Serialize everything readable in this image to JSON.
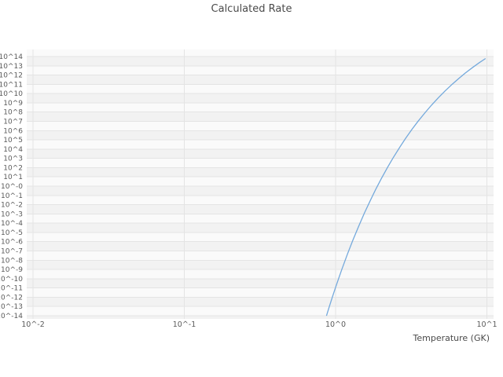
{
  "colors": {
    "title_text": "#4a4a4a",
    "tick_text": "#5a5a5a",
    "grid_line": "#e4e4e4",
    "band_dark": "#f2f2f2",
    "band_light": "#fafafa",
    "series_line": "#74a9dc"
  },
  "chart_data": {
    "type": "line",
    "title": "Calculated Rate",
    "xlabel": "Temperature (GK)",
    "ylabel": "",
    "x_scale": "log",
    "y_scale": "log",
    "xlim": [
      0.01,
      11
    ],
    "ylim_exp": [
      -14,
      14
    ],
    "grid": true,
    "legend": "none",
    "x_tick_labels": [
      "10^-2",
      "10^-1",
      "10^0",
      "10^1"
    ],
    "x_tick_log10": [
      -2,
      -1,
      0,
      1
    ],
    "y_tick_labels": [
      "10^14",
      "10^13",
      "10^12",
      "10^11",
      "10^10",
      "10^9",
      "10^8",
      "10^7",
      "10^6",
      "10^5",
      "10^4",
      "10^3",
      "10^2",
      "10^1",
      "10^-0",
      "10^-1",
      "10^-2",
      "10^-3",
      "10^-4",
      "10^-5",
      "10^-6",
      "10^-7",
      "10^-8",
      "10^-9",
      "10^-10",
      "10^-11",
      "10^-12",
      "10^-13",
      "10^-14"
    ],
    "series": [
      {
        "name": "calculated-rate",
        "color": "#74a9dc",
        "x": [
          0.87,
          0.9,
          0.95,
          1.0,
          1.05,
          1.1,
          1.2,
          1.3,
          1.42,
          1.55,
          1.7,
          1.85,
          2.0,
          2.2,
          2.4,
          2.65,
          2.9,
          3.2,
          3.5,
          3.9,
          4.3,
          4.8,
          5.3,
          5.9,
          6.5,
          7.2,
          8.0,
          8.9,
          9.8
        ],
        "log10_y": [
          -14.01,
          -13.23,
          -12.03,
          -10.93,
          -9.92,
          -8.98,
          -7.31,
          -5.85,
          -4.34,
          -2.92,
          -1.51,
          -0.29,
          0.77,
          2.0,
          3.06,
          4.18,
          5.15,
          6.14,
          6.98,
          7.93,
          8.74,
          9.58,
          10.29,
          11.01,
          11.62,
          12.22,
          12.79,
          13.34,
          13.79
        ]
      }
    ]
  }
}
